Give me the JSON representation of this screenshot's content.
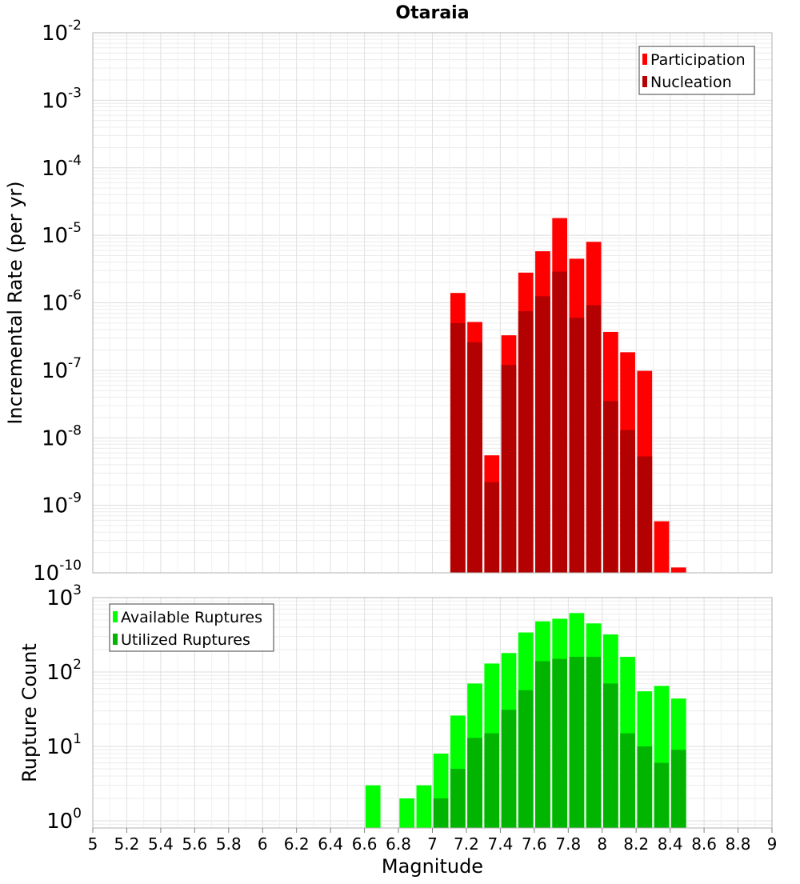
{
  "chart_data": [
    {
      "type": "bar",
      "title": "Otaraia",
      "xlabel": "",
      "ylabel": "Incremental Rate (per yr)",
      "yscale": "log",
      "ylim": [
        1e-10,
        0.01
      ],
      "xlim": [
        5,
        9
      ],
      "grid": true,
      "legend_position": "top-right",
      "y_ticks": [
        {
          "base": "10",
          "exp": "-2"
        },
        {
          "base": "10",
          "exp": "-3"
        },
        {
          "base": "10",
          "exp": "-4"
        },
        {
          "base": "10",
          "exp": "-5"
        },
        {
          "base": "10",
          "exp": "-6"
        },
        {
          "base": "10",
          "exp": "-7"
        },
        {
          "base": "10",
          "exp": "-8"
        },
        {
          "base": "10",
          "exp": "-9"
        },
        {
          "base": "10",
          "exp": "-10"
        }
      ],
      "y_tick_values": [
        0.01,
        0.001,
        0.0001,
        1e-05,
        1e-06,
        1e-07,
        1e-08,
        1e-09,
        1e-10
      ],
      "x": [
        7.15,
        7.25,
        7.35,
        7.45,
        7.55,
        7.65,
        7.75,
        7.85,
        7.95,
        8.05,
        8.15,
        8.25,
        8.35,
        8.45
      ],
      "series": [
        {
          "name": "Participation",
          "color": "#ff0000",
          "values": [
            1.4e-06,
            5.2e-07,
            5.5e-09,
            3.3e-07,
            2.8e-06,
            5.8e-06,
            1.8e-05,
            4.5e-06,
            8e-06,
            3.7e-07,
            1.85e-07,
            9.8e-08,
            5.8e-10,
            1.2e-10
          ]
        },
        {
          "name": "Nucleation",
          "color": "#b30000",
          "values": [
            5e-07,
            2.6e-07,
            2.2e-09,
            1.2e-07,
            7.5e-07,
            1.25e-06,
            2.9e-06,
            6e-07,
            9.2e-07,
            3.5e-08,
            1.3e-08,
            5.3e-09,
            null,
            null
          ]
        }
      ]
    },
    {
      "type": "bar",
      "title": "",
      "xlabel": "Magnitude",
      "ylabel": "Rupture Count",
      "yscale": "log",
      "ylim": [
        0.8,
        1000
      ],
      "xlim": [
        5,
        9
      ],
      "grid": true,
      "legend_position": "top-left",
      "y_ticks": [
        {
          "base": "10",
          "exp": "3"
        },
        {
          "base": "10",
          "exp": "2"
        },
        {
          "base": "10",
          "exp": "1"
        },
        {
          "base": "10",
          "exp": "0"
        }
      ],
      "y_tick_values": [
        1000,
        100,
        10,
        1
      ],
      "x_ticks": [
        "5",
        "5.2",
        "5.4",
        "5.6",
        "5.8",
        "6",
        "6.2",
        "6.4",
        "6.6",
        "6.8",
        "7",
        "7.2",
        "7.4",
        "7.6",
        "7.8",
        "8",
        "8.2",
        "8.4",
        "8.6",
        "8.8",
        "9"
      ],
      "x_tick_values": [
        5,
        5.2,
        5.4,
        5.6,
        5.8,
        6,
        6.2,
        6.4,
        6.6,
        6.8,
        7,
        7.2,
        7.4,
        7.6,
        7.8,
        8,
        8.2,
        8.4,
        8.6,
        8.8,
        9
      ],
      "x": [
        6.65,
        6.75,
        6.85,
        6.95,
        7.05,
        7.15,
        7.25,
        7.35,
        7.45,
        7.55,
        7.65,
        7.75,
        7.85,
        7.95,
        8.05,
        8.15,
        8.25,
        8.35,
        8.45
      ],
      "series": [
        {
          "name": "Available Ruptures",
          "color": "#00ff00",
          "values": [
            3,
            null,
            2,
            3,
            8,
            26,
            70,
            130,
            180,
            340,
            480,
            520,
            620,
            450,
            320,
            160,
            55,
            65,
            44
          ]
        },
        {
          "name": "Utilized Ruptures",
          "color": "#00b400",
          "values": [
            null,
            null,
            null,
            null,
            2,
            5,
            13,
            15,
            31,
            57,
            140,
            150,
            160,
            160,
            70,
            15,
            10,
            6,
            9
          ]
        }
      ]
    }
  ]
}
